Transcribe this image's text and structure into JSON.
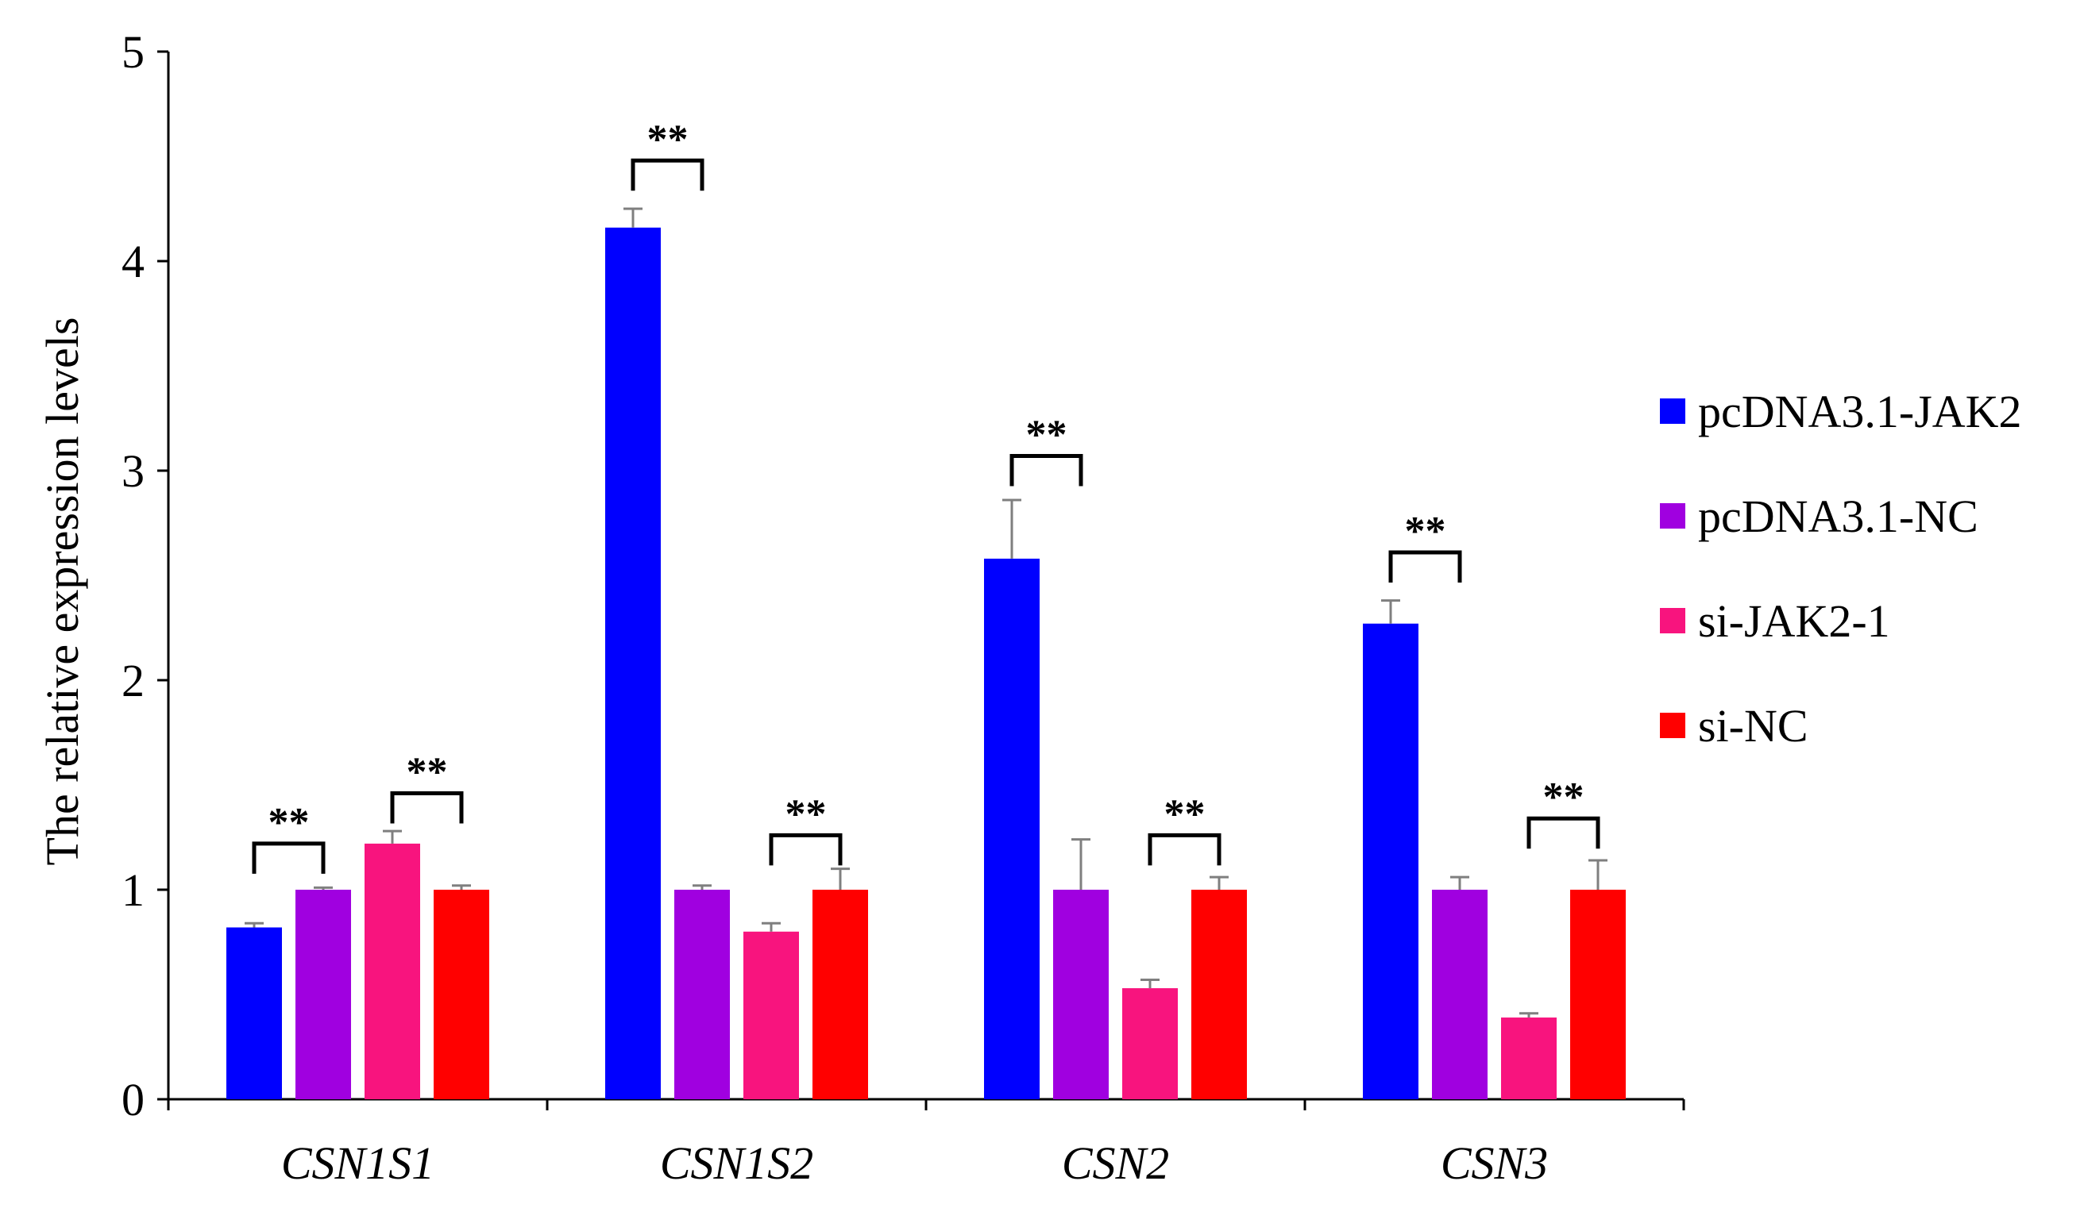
{
  "chart_data": {
    "type": "bar",
    "title": "",
    "xlabel": "",
    "ylabel": "The relative expression levels",
    "ylim": [
      0,
      5
    ],
    "yticks": [
      0,
      1,
      2,
      3,
      4,
      5
    ],
    "grid": false,
    "legend_position": "right",
    "categories": [
      "CSN1S1",
      "CSN1S2",
      "CSN2",
      "CSN3"
    ],
    "series": [
      {
        "name": "pcDNA3.1-JAK2",
        "color": "#0000FF",
        "values": [
          0.82,
          4.16,
          2.58,
          2.27
        ],
        "errors": [
          0.02,
          0.09,
          0.28,
          0.11
        ]
      },
      {
        "name": "pcDNA3.1-NC",
        "color": "#A000E0",
        "values": [
          1.0,
          1.0,
          1.0,
          1.0
        ],
        "errors": [
          0.01,
          0.02,
          0.24,
          0.06
        ]
      },
      {
        "name": "si-JAK2-1",
        "color": "#F8147E",
        "values": [
          1.22,
          0.8,
          0.53,
          0.39
        ],
        "errors": [
          0.06,
          0.04,
          0.04,
          0.02
        ]
      },
      {
        "name": "si-NC",
        "color": "#FF0000",
        "values": [
          1.0,
          1.0,
          1.0,
          1.0
        ],
        "errors": [
          0.02,
          0.1,
          0.06,
          0.14
        ]
      }
    ],
    "significance": [
      {
        "category": 0,
        "from_series": 0,
        "to_series": 1,
        "label": "**",
        "level": 1.22
      },
      {
        "category": 0,
        "from_series": 2,
        "to_series": 3,
        "label": "**",
        "level": 1.46
      },
      {
        "category": 1,
        "from_series": 0,
        "to_series": 1,
        "label": "**",
        "level": 4.48
      },
      {
        "category": 1,
        "from_series": 2,
        "to_series": 3,
        "label": "**",
        "level": 1.26
      },
      {
        "category": 2,
        "from_series": 0,
        "to_series": 1,
        "label": "**",
        "level": 3.07
      },
      {
        "category": 2,
        "from_series": 2,
        "to_series": 3,
        "label": "**",
        "level": 1.26
      },
      {
        "category": 3,
        "from_series": 0,
        "to_series": 1,
        "label": "**",
        "level": 2.61
      },
      {
        "category": 3,
        "from_series": 2,
        "to_series": 3,
        "label": "**",
        "level": 1.34
      }
    ]
  }
}
